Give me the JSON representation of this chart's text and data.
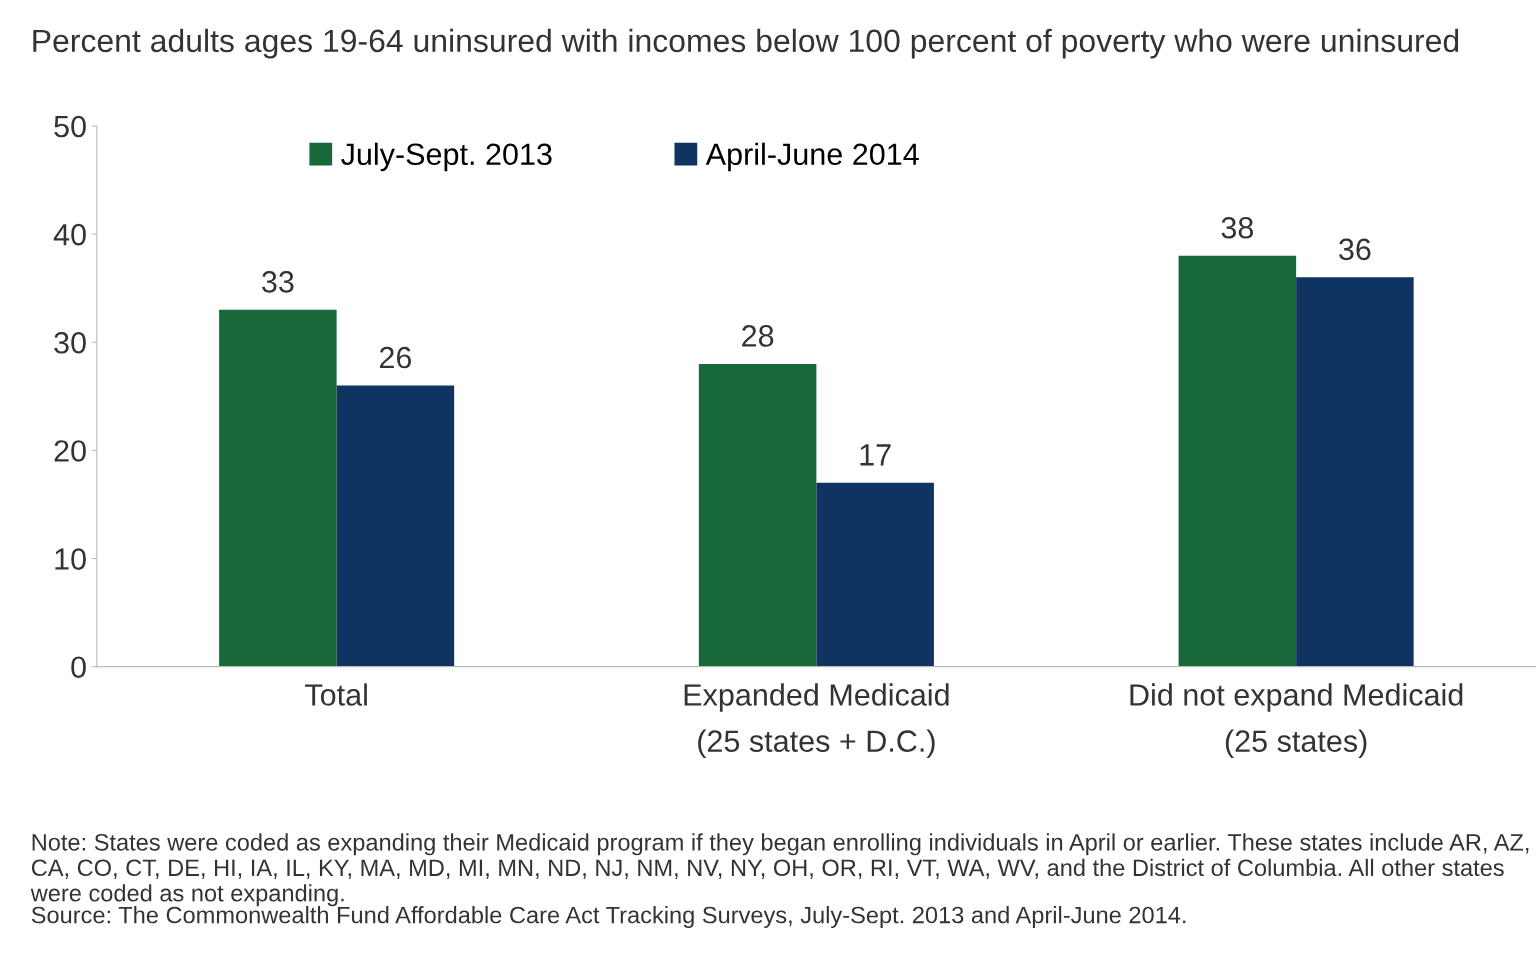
{
  "chart_data": {
    "type": "bar",
    "title": "Percent adults ages 19-64 uninsured with incomes below 100 percent of poverty who were uninsured",
    "categories": [
      "Total",
      "Expanded Medicaid\n(25 states + D.C.)",
      "Did not expand Medicaid\n(25 states)"
    ],
    "series": [
      {
        "name": "July-Sept. 2013",
        "color": "#17693a",
        "values": [
          33,
          28,
          38
        ]
      },
      {
        "name": "April-June 2014",
        "color": "#0f3461",
        "values": [
          26,
          17,
          36
        ]
      }
    ],
    "ylim": [
      0,
      50
    ],
    "yticks": [
      0,
      10,
      20,
      30,
      40,
      50
    ],
    "grid": false,
    "legend": "top",
    "data_labels": true,
    "annotations": [
      "Note: States were coded as expanding their Medicaid program if they began enrolling individuals in April or earlier. These states include AR, AZ, CA, CO, CT, DE, HI, IA, IL, KY, MA, MD, MI, MN, ND, NJ, NM, NV, NY, OH, OR, RI, VT, WA, WV, and the District of Columbia. All other states were coded as not expanding.",
      "Source: The Commonwealth Fund Affordable Care Act Tracking Surveys, July-Sept. 2013 and April-June 2014."
    ]
  }
}
